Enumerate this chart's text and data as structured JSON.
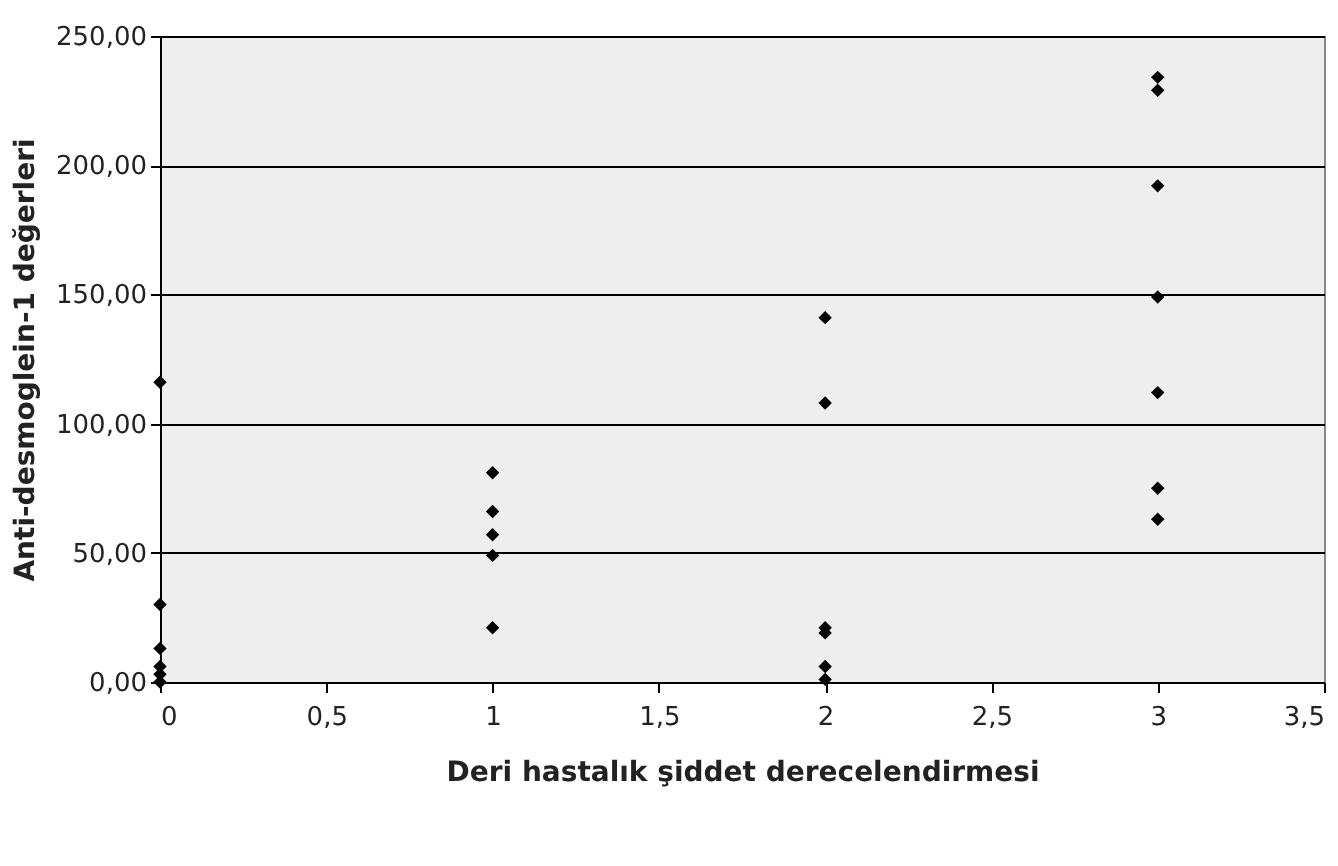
{
  "chart_data": {
    "type": "scatter",
    "xlabel": "Deri hastalık şiddet derecelendirmesi",
    "ylabel": "Anti-desmoglein-1 değerleri",
    "x": [
      0,
      0,
      0,
      0,
      0,
      0,
      1,
      1,
      1,
      1,
      1,
      2,
      2,
      2,
      2,
      2,
      2,
      3,
      3,
      3,
      3,
      3,
      3,
      3
    ],
    "series": [
      {
        "color": "#000000",
        "values": [
          116,
          30,
          13,
          6,
          3,
          0,
          81,
          66,
          57,
          49,
          21,
          141,
          108,
          21,
          19,
          6,
          1,
          234,
          229,
          192,
          149,
          112,
          75,
          63
        ]
      }
    ],
    "xlim": [
      0,
      3.5
    ],
    "ylim": [
      0,
      250
    ],
    "xticks": [
      0,
      {
        "value": 0.5,
        "label": "0,5"
      },
      1,
      {
        "value": 1.5,
        "label": "1,5"
      },
      2,
      {
        "value": 2.5,
        "label": "2,5"
      },
      3,
      {
        "value": 3.5,
        "label": "3,5"
      }
    ],
    "yticks": [
      {
        "value": 0,
        "label": "0,00"
      },
      {
        "value": 50,
        "label": "50,00"
      },
      {
        "value": 100,
        "label": "100,00"
      },
      {
        "value": 150,
        "label": "150,00"
      },
      {
        "value": 200,
        "label": "200,00"
      },
      {
        "value": 250,
        "label": "250,00"
      }
    ],
    "grid": "y",
    "marker": "diamond",
    "legend": false
  }
}
